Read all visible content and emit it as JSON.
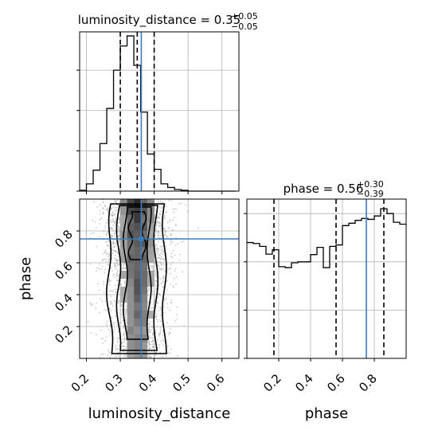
{
  "colors": {
    "truth": "#3b7bbf",
    "line": "#000000",
    "grid": "#b0b0b0",
    "scatter": "#9a9a9a"
  },
  "chart_data": [
    {
      "type": "histogram",
      "panel": "luminosity_distance_marginal",
      "title": {
        "text": "luminosity_distance = 0.35",
        "upper": "+0.05",
        "lower": "−0.05"
      },
      "xlim": [
        0.18,
        0.65
      ],
      "bin_edges": [
        0.18,
        0.2,
        0.22,
        0.24,
        0.26,
        0.28,
        0.3,
        0.32,
        0.34,
        0.36,
        0.38,
        0.4,
        0.42,
        0.44,
        0.46,
        0.48,
        0.5,
        0.52,
        0.54,
        0.56,
        0.58,
        0.6,
        0.62,
        0.64
      ],
      "counts": [
        2,
        18,
        52,
        118,
        205,
        300,
        360,
        385,
        312,
        196,
        92,
        54,
        18,
        9,
        4,
        2,
        0,
        0,
        0,
        0,
        0,
        0,
        0
      ],
      "ylim": [
        0,
        395
      ],
      "quantiles": [
        0.3,
        0.35,
        0.4
      ],
      "truth": 0.362,
      "grid": true
    },
    {
      "type": "histogram",
      "panel": "phase_marginal",
      "title": {
        "text": "phase = 0.56",
        "upper": "+0.30",
        "lower": "−0.39"
      },
      "xlim": [
        0.0,
        1.0
      ],
      "bin_edges": [
        0.0,
        0.04,
        0.08,
        0.12,
        0.16,
        0.2,
        0.24,
        0.28,
        0.32,
        0.36,
        0.4,
        0.44,
        0.48,
        0.52,
        0.56,
        0.6,
        0.64,
        0.68,
        0.72,
        0.76,
        0.8,
        0.84,
        0.88,
        0.92,
        0.96,
        1.0
      ],
      "counts": [
        240,
        238,
        232,
        216,
        225,
        190,
        188,
        198,
        200,
        200,
        215,
        230,
        188,
        232,
        235,
        275,
        280,
        286,
        290,
        288,
        295,
        310,
        300,
        282,
        278
      ],
      "ylim": [
        0,
        330
      ],
      "quantiles": [
        0.17,
        0.56,
        0.86
      ],
      "truth": 0.75,
      "grid": true
    },
    {
      "type": "scatter",
      "panel": "joint_density",
      "x_param": "luminosity_distance",
      "y_param": "phase",
      "xlim": [
        0.18,
        0.65
      ],
      "ylim": [
        0.0,
        1.0
      ],
      "truth": {
        "x": 0.362,
        "y": 0.75
      },
      "density_x_mean": 0.35,
      "density_x_sd": 0.048,
      "xticks": [
        "0.2",
        "0.3",
        "0.4",
        "0.5",
        "0.6"
      ],
      "yticks": [
        "0.2",
        "0.4",
        "0.6",
        "0.8"
      ],
      "xlabel": "luminosity_distance",
      "ylabel": "phase",
      "grid": true
    }
  ],
  "bottom_right_axis": {
    "xticks": [
      "0.2",
      "0.4",
      "0.6",
      "0.8"
    ],
    "xlabel": "phase"
  }
}
